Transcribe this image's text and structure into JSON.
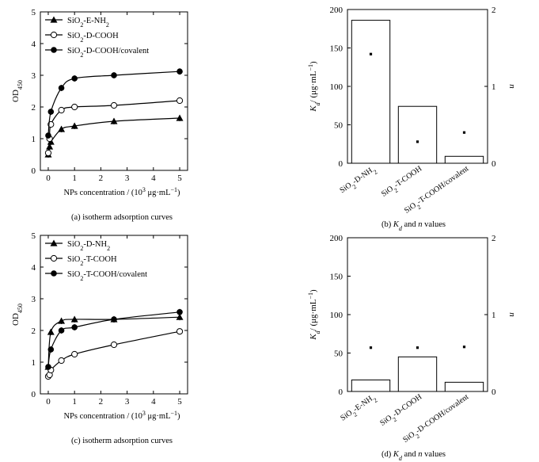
{
  "chart_data": [
    {
      "panel": "a",
      "type": "scatter",
      "caption": "(a) isotherm adsorption curves",
      "xlabel": "NPs concentration / (10³ μg·mL⁻¹)",
      "ylabel": "OD450",
      "xlim": [
        -0.3,
        5.3
      ],
      "ylim": [
        0,
        5
      ],
      "xticks": [
        0,
        1,
        2,
        3,
        4,
        5
      ],
      "yticks": [
        0,
        1,
        2,
        3,
        4,
        5
      ],
      "legend_position": "top-left",
      "series": [
        {
          "name": "SiO₂-E-NH₂",
          "marker": "triangle",
          "x": [
            0,
            0.05,
            0.1,
            0.5,
            1,
            2.5,
            5
          ],
          "y": [
            0.5,
            0.75,
            0.9,
            1.3,
            1.4,
            1.55,
            1.65
          ]
        },
        {
          "name": "SiO₂-D-COOH",
          "marker": "open-circle",
          "x": [
            0,
            0.05,
            0.1,
            0.5,
            1,
            2.5,
            5
          ],
          "y": [
            0.55,
            1.0,
            1.45,
            1.9,
            2.0,
            2.05,
            2.2
          ]
        },
        {
          "name": "SiO₂-D-COOH/covalent",
          "marker": "filled-circle",
          "x": [
            0,
            0.1,
            0.5,
            1,
            2.5,
            5
          ],
          "y": [
            1.1,
            1.85,
            2.6,
            2.9,
            3.0,
            3.12
          ]
        }
      ]
    },
    {
      "panel": "b",
      "type": "bar",
      "caption": "(b) Kd and n values",
      "ylabel": "Kd/ (μg·mL⁻¹)",
      "y2label": "n",
      "ylim": [
        0,
        200
      ],
      "y2lim": [
        0,
        2
      ],
      "yticks": [
        0,
        50,
        100,
        150,
        200
      ],
      "y2ticks": [
        0,
        1,
        2
      ],
      "categories": [
        "SiO₂-D-NH₂",
        "SiO₂-T-COOH",
        "SiO₂-T-COOH/covalent"
      ],
      "values": [
        186,
        74,
        9
      ],
      "n_values": [
        1.42,
        0.28,
        0.4
      ]
    },
    {
      "panel": "c",
      "type": "scatter",
      "caption": "(c) isotherm adsorption curves",
      "xlabel": "NPs concentration / (10³ μg·mL⁻¹)",
      "ylabel": "OD450",
      "xlim": [
        -0.3,
        5.3
      ],
      "ylim": [
        0,
        5
      ],
      "xticks": [
        0,
        1,
        2,
        3,
        4,
        5
      ],
      "yticks": [
        0,
        1,
        2,
        3,
        4,
        5
      ],
      "legend_position": "top-left",
      "series": [
        {
          "name": "SiO₂-D-NH₂",
          "marker": "triangle",
          "x": [
            0,
            0.1,
            0.5,
            1,
            2.5,
            5
          ],
          "y": [
            0.85,
            1.95,
            2.3,
            2.35,
            2.35,
            2.42
          ]
        },
        {
          "name": "SiO₂-T-COOH",
          "marker": "open-circle",
          "x": [
            0,
            0.05,
            0.1,
            0.5,
            1,
            2.5,
            5
          ],
          "y": [
            0.55,
            0.6,
            0.75,
            1.05,
            1.25,
            1.55,
            1.97
          ]
        },
        {
          "name": "SiO₂-T-COOH/covalent",
          "marker": "filled-circle",
          "x": [
            0,
            0.1,
            0.5,
            1,
            2.5,
            5
          ],
          "y": [
            0.85,
            1.4,
            2.0,
            2.1,
            2.35,
            2.58
          ]
        }
      ]
    },
    {
      "panel": "d",
      "type": "bar",
      "caption": "(d) Kd and n values",
      "ylabel": "Kd/ (μg·mL⁻¹)",
      "y2label": "n",
      "ylim": [
        0,
        200
      ],
      "y2lim": [
        0,
        2
      ],
      "yticks": [
        0,
        50,
        100,
        150,
        200
      ],
      "y2ticks": [
        0,
        1,
        2
      ],
      "categories": [
        "SiO₂-E-NH₂",
        "SiO₂-D-COOH",
        "SiO₂-D-COOH/covalent"
      ],
      "values": [
        15,
        45,
        12
      ],
      "n_values": [
        0.57,
        0.57,
        0.58
      ]
    }
  ]
}
